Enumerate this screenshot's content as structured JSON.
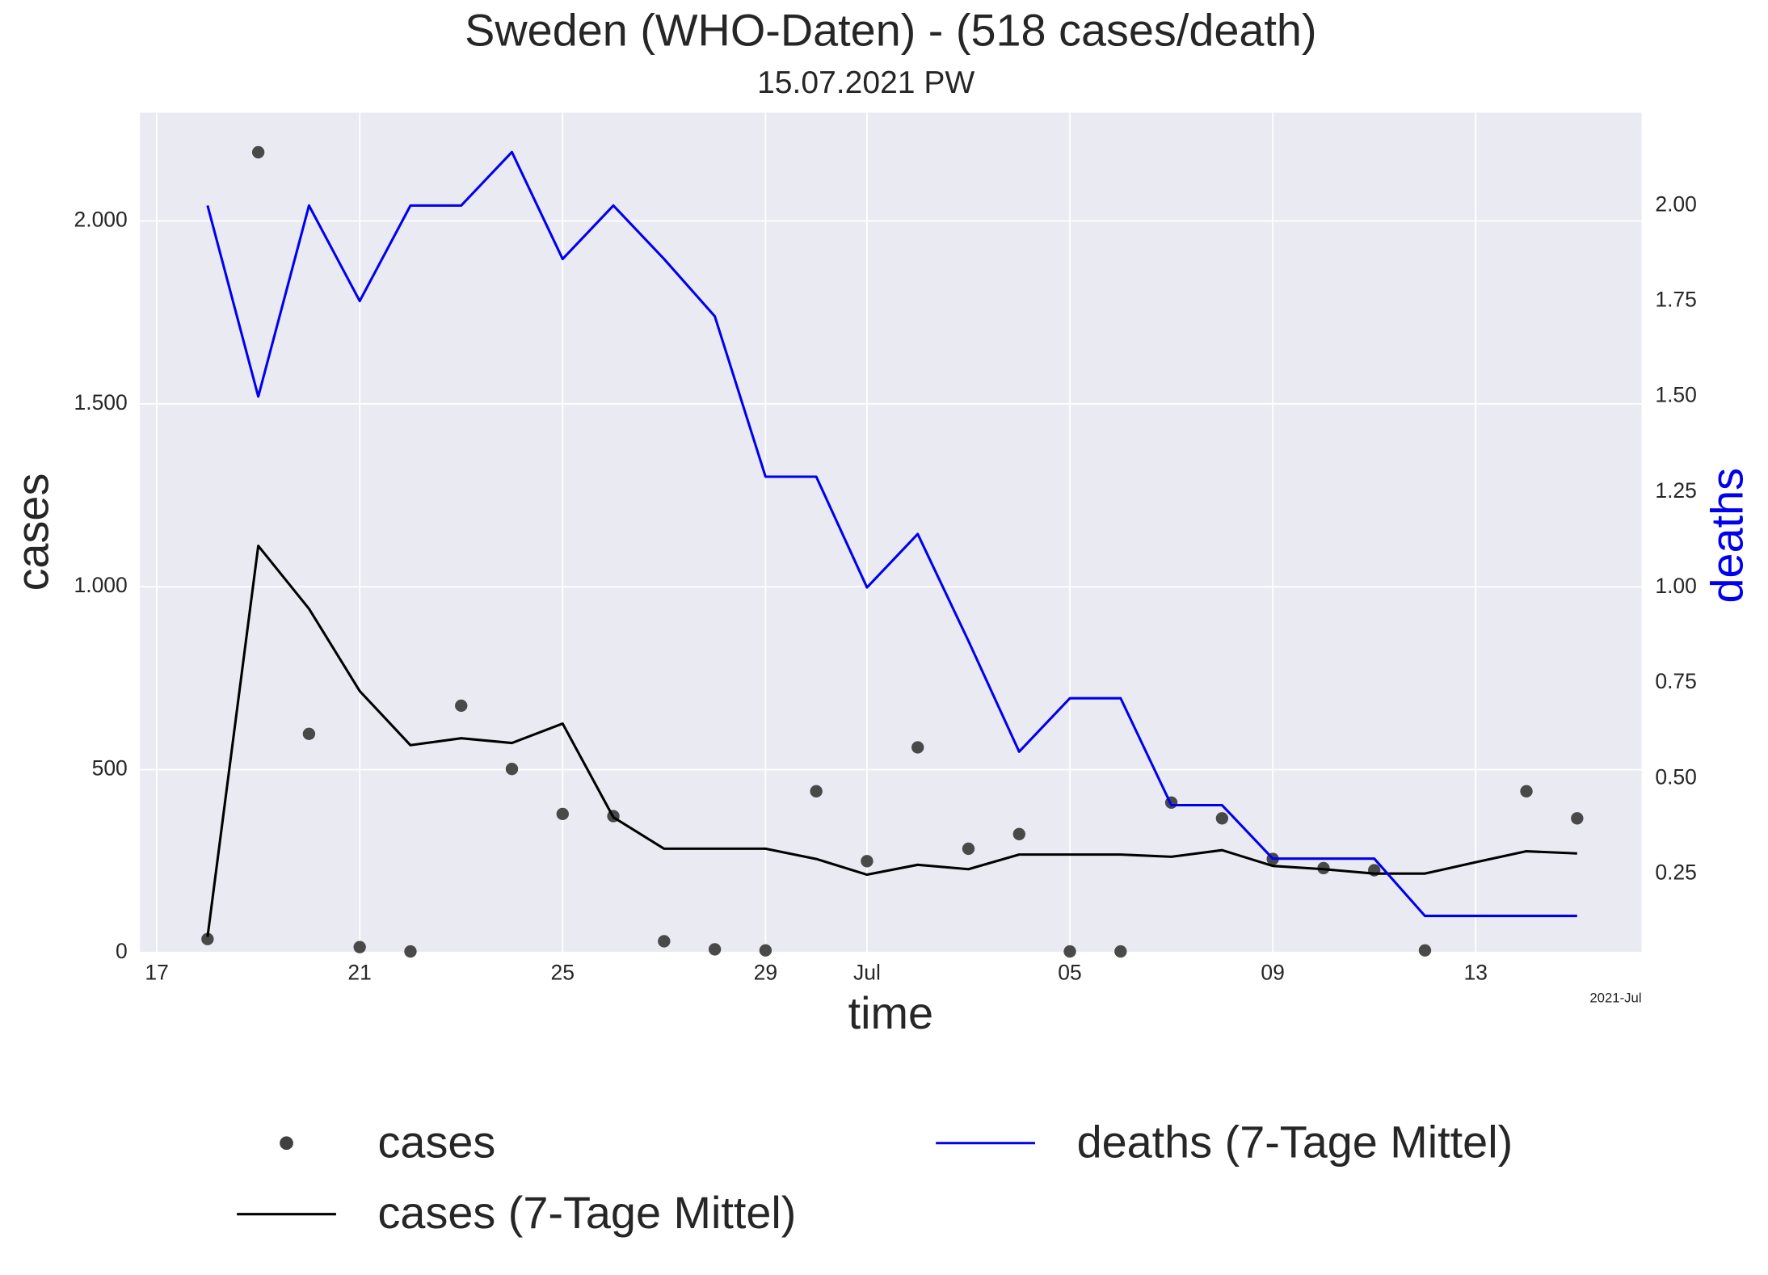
{
  "chart_data": {
    "type": "line",
    "title": "Sweden (WHO-Daten) - (518 cases/death)",
    "subtitle": "15.07.2021 PW",
    "x_label": "time",
    "y_label": "cases",
    "y2_label": "deaths",
    "x_offset_label": "2021-Jul",
    "x": [
      "2021-06-18",
      "2021-06-19",
      "2021-06-20",
      "2021-06-21",
      "2021-06-22",
      "2021-06-23",
      "2021-06-24",
      "2021-06-25",
      "2021-06-26",
      "2021-06-27",
      "2021-06-28",
      "2021-06-29",
      "2021-06-30",
      "2021-07-01",
      "2021-07-02",
      "2021-07-03",
      "2021-07-04",
      "2021-07-05",
      "2021-07-06",
      "2021-07-07",
      "2021-07-08",
      "2021-07-09",
      "2021-07-10",
      "2021-07-11",
      "2021-07-12",
      "2021-07-13",
      "2021-07-14",
      "2021-07-15"
    ],
    "xlim": [
      "2021-06-16T16:00:00Z",
      "2021-07-16T06:30:00Z"
    ],
    "xticks": [
      {
        "value": "2021-06-17",
        "label": "17"
      },
      {
        "value": "2021-06-21",
        "label": "21"
      },
      {
        "value": "2021-06-25",
        "label": "25"
      },
      {
        "value": "2021-06-29",
        "label": "29"
      },
      {
        "value": "2021-07-01",
        "label": "Jul"
      },
      {
        "value": "2021-07-05",
        "label": "05"
      },
      {
        "value": "2021-07-09",
        "label": "09"
      },
      {
        "value": "2021-07-13",
        "label": "13"
      }
    ],
    "ylim": [
      0,
      2296
    ],
    "yticks": [
      0,
      500,
      {
        "value": 1000,
        "label": "1.000"
      },
      {
        "value": 1500,
        "label": "1.500"
      },
      {
        "value": 2000,
        "label": "2.000"
      }
    ],
    "y2lim": [
      0.044,
      2.243
    ],
    "y2ticks": [
      0.25,
      {
        "value": 0.5,
        "label": "0.50"
      },
      0.75,
      {
        "value": 1,
        "label": "1.00"
      },
      1.25,
      {
        "value": 1.5,
        "label": "1.50"
      },
      1.75,
      {
        "value": 2,
        "label": "2.00"
      }
    ],
    "grid": true,
    "legend": "lower center",
    "series": [
      {
        "name": "cases",
        "kind": "scatter",
        "color": "#404040",
        "values": [
          37,
          2188,
          598,
          15,
          3,
          675,
          502,
          379,
          373,
          31,
          9,
          6,
          441,
          250,
          561,
          284,
          324,
          3,
          3,
          410,
          367,
          256,
          231,
          225,
          6,
          null,
          441,
          367
        ]
      },
      {
        "name": "cases (7-Tage Mittel)",
        "kind": "line",
        "color": "#000000",
        "values": [
          43,
          1112,
          940,
          715,
          567,
          586,
          573,
          626,
          370,
          284,
          284,
          284,
          256,
          213,
          240,
          228,
          268,
          268,
          268,
          262,
          280,
          237,
          228,
          216,
          216,
          247,
          277,
          271
        ]
      },
      {
        "name": "deaths (7-Tage Mittel)",
        "kind": "line",
        "color": "#0000ee",
        "axis": "y2",
        "values": [
          2.0,
          1.5,
          2.0,
          1.75,
          2.0,
          2.0,
          2.14,
          1.86,
          2.0,
          1.86,
          1.71,
          1.29,
          1.29,
          1.0,
          1.14,
          0.86,
          0.57,
          0.71,
          0.71,
          0.43,
          0.43,
          0.29,
          0.29,
          0.29,
          0.14,
          0.14,
          0.14,
          0.14
        ]
      }
    ]
  }
}
